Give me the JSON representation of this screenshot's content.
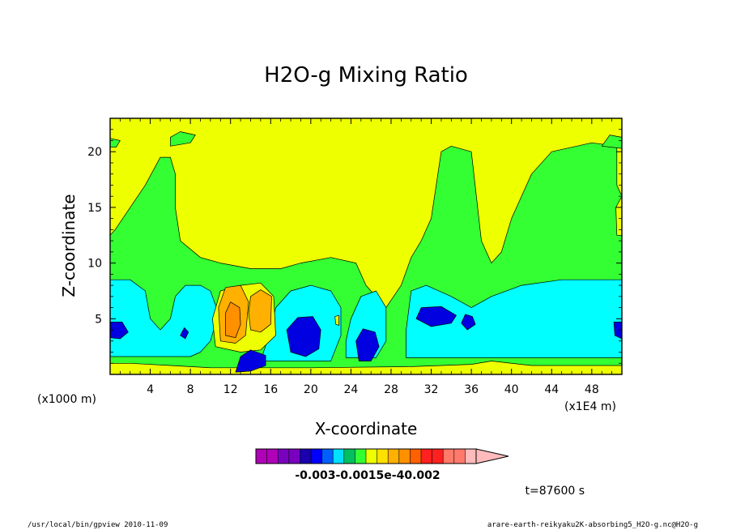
{
  "chart_data": {
    "type": "heatmap",
    "title": "H2O-g Mixing Ratio",
    "xlabel": "X-coordinate",
    "ylabel": "Z-coordinate",
    "x_unit_label": "(x1E4 m)",
    "y_unit_label": "(x1000 m)",
    "xlim": [
      0,
      51
    ],
    "ylim": [
      0,
      23
    ],
    "x_ticks": [
      "4",
      "8",
      "12",
      "16",
      "20",
      "24",
      "28",
      "32",
      "36",
      "40",
      "44",
      "48"
    ],
    "x_tick_values": [
      4,
      8,
      12,
      16,
      20,
      24,
      28,
      32,
      36,
      40,
      44,
      48
    ],
    "y_ticks": [
      "5",
      "10",
      "15",
      "20"
    ],
    "y_tick_values": [
      5,
      10,
      15,
      20
    ],
    "colorbar": {
      "colors": [
        "#b000b8",
        "#b000b8",
        "#7a00c0",
        "#7a00c0",
        "#1a00b0",
        "#0000ff",
        "#0060ff",
        "#00e0ff",
        "#00c060",
        "#33ff33",
        "#eeff00",
        "#ffe000",
        "#ffb000",
        "#ff9000",
        "#ff6000",
        "#ff2020",
        "#ff2020",
        "#ff7a6a",
        "#ff7a6a",
        "#ffbbbb"
      ],
      "label_text": "-0.003-0.0015e-40.002"
    },
    "time_label": "t=87600 s",
    "footer_left": "/usr/local/bin/gpview  2010-11-09",
    "footer_right": "arare-earth-reikyaku2K-absorbing5_H2O-g.nc@H2O-g",
    "regions": [
      {
        "level": "green",
        "color": "#33ff33",
        "points": [
          [
            0,
            0
          ],
          [
            51,
            0
          ],
          [
            51,
            16
          ],
          [
            50.5,
            17
          ],
          [
            50.5,
            20.5
          ],
          [
            48,
            20.8
          ],
          [
            44,
            20
          ],
          [
            42,
            18
          ],
          [
            40,
            14
          ],
          [
            39,
            11
          ],
          [
            38,
            10
          ],
          [
            37,
            12
          ],
          [
            36.5,
            16
          ],
          [
            36,
            20
          ],
          [
            34,
            20.5
          ],
          [
            33,
            20
          ],
          [
            32.5,
            17
          ],
          [
            32,
            14
          ],
          [
            31,
            12
          ],
          [
            30,
            10.5
          ],
          [
            29,
            8
          ],
          [
            27.5,
            6
          ],
          [
            25.5,
            8
          ],
          [
            24.5,
            10
          ],
          [
            22,
            10.5
          ],
          [
            19,
            10
          ],
          [
            17,
            9.5
          ],
          [
            14,
            9.5
          ],
          [
            11,
            10
          ],
          [
            9,
            10.5
          ],
          [
            7,
            12
          ],
          [
            6.5,
            15
          ],
          [
            6.5,
            18
          ],
          [
            6,
            19.5
          ],
          [
            5,
            19.5
          ],
          [
            3.5,
            17
          ],
          [
            2,
            15
          ],
          [
            0.5,
            13
          ],
          [
            0,
            12.5
          ]
        ]
      },
      {
        "level": "cyan",
        "color": "#00ffff",
        "points": [
          [
            0,
            1.6
          ],
          [
            8,
            1.6
          ],
          [
            9,
            2
          ],
          [
            10,
            3
          ],
          [
            10.8,
            5.5
          ],
          [
            10,
            7.5
          ],
          [
            9,
            8
          ],
          [
            7.5,
            8
          ],
          [
            6.5,
            7
          ],
          [
            6,
            5
          ],
          [
            5,
            4
          ],
          [
            4,
            5
          ],
          [
            3.5,
            7.5
          ],
          [
            2,
            8.5
          ],
          [
            0,
            8.5
          ]
        ]
      },
      {
        "level": "cyan",
        "color": "#00ffff",
        "points": [
          [
            15,
            1.2
          ],
          [
            22,
            1.2
          ],
          [
            23,
            3.5
          ],
          [
            23,
            6
          ],
          [
            22,
            7.5
          ],
          [
            20,
            8
          ],
          [
            18,
            7.5
          ],
          [
            16.5,
            6
          ],
          [
            16,
            4
          ]
        ]
      },
      {
        "level": "cyan",
        "color": "#00ffff",
        "points": [
          [
            23.5,
            1.5
          ],
          [
            26.5,
            1.5
          ],
          [
            27.5,
            3
          ],
          [
            27.5,
            6
          ],
          [
            26.5,
            7.5
          ],
          [
            25,
            7
          ],
          [
            24,
            5
          ],
          [
            23.5,
            3
          ]
        ]
      },
      {
        "level": "cyan",
        "color": "#00ffff",
        "points": [
          [
            29.5,
            1.5
          ],
          [
            51,
            1.5
          ],
          [
            51,
            8.5
          ],
          [
            45,
            8.5
          ],
          [
            41,
            8
          ],
          [
            38,
            7
          ],
          [
            36,
            6
          ],
          [
            34,
            7
          ],
          [
            31.5,
            8
          ],
          [
            30,
            7.5
          ],
          [
            29.5,
            4
          ]
        ]
      },
      {
        "level": "yellow-low",
        "color": "#eeff00",
        "points": [
          [
            0,
            0
          ],
          [
            51,
            0
          ],
          [
            51,
            0.8
          ],
          [
            48,
            0.8
          ],
          [
            42,
            0.8
          ],
          [
            38,
            1.2
          ],
          [
            36,
            0.9
          ],
          [
            30,
            0.7
          ],
          [
            20,
            0.6
          ],
          [
            10,
            0.6
          ],
          [
            6,
            0.8
          ],
          [
            2,
            1
          ],
          [
            0,
            1
          ]
        ]
      },
      {
        "level": "yellow",
        "color": "#eeff00",
        "points": [
          [
            10.5,
            2.5
          ],
          [
            13,
            2
          ],
          [
            15,
            2.2
          ],
          [
            16.5,
            3.5
          ],
          [
            16.3,
            7
          ],
          [
            15,
            8.2
          ],
          [
            13,
            8
          ],
          [
            11,
            7.5
          ],
          [
            10.2,
            5
          ]
        ]
      },
      {
        "level": "orange",
        "color": "#ffb000",
        "points": [
          [
            11,
            3
          ],
          [
            12.5,
            2.8
          ],
          [
            13.5,
            3.5
          ],
          [
            13.8,
            6.5
          ],
          [
            13,
            8
          ],
          [
            11.5,
            7.8
          ],
          [
            10.8,
            6
          ]
        ]
      },
      {
        "level": "orange",
        "color": "#ffb000",
        "points": [
          [
            14,
            4
          ],
          [
            15,
            3.8
          ],
          [
            16,
            4.5
          ],
          [
            16.1,
            7
          ],
          [
            15,
            7.6
          ],
          [
            14,
            7
          ],
          [
            13.8,
            5.5
          ]
        ]
      },
      {
        "level": "orange-dark",
        "color": "#ff9000",
        "points": [
          [
            11.5,
            3.5
          ],
          [
            12.5,
            3.3
          ],
          [
            13,
            4.5
          ],
          [
            12.9,
            6
          ],
          [
            12,
            6.5
          ],
          [
            11.5,
            5.5
          ]
        ]
      },
      {
        "level": "blue",
        "color": "#0000e0",
        "points": [
          [
            18,
            2
          ],
          [
            19.5,
            1.6
          ],
          [
            20.8,
            2.3
          ],
          [
            21,
            4
          ],
          [
            20.2,
            5.2
          ],
          [
            18.7,
            5.1
          ],
          [
            17.6,
            4
          ]
        ]
      },
      {
        "level": "blue",
        "color": "#0000e0",
        "points": [
          [
            24.8,
            1.2
          ],
          [
            26,
            1.2
          ],
          [
            26.8,
            2.5
          ],
          [
            26.4,
            3.8
          ],
          [
            25.2,
            4.1
          ],
          [
            24.5,
            3
          ]
        ]
      },
      {
        "level": "blue",
        "color": "#0000e0",
        "points": [
          [
            30.5,
            5
          ],
          [
            32,
            4.3
          ],
          [
            34,
            4.6
          ],
          [
            34.5,
            5.3
          ],
          [
            33,
            6.1
          ],
          [
            31,
            6
          ]
        ]
      },
      {
        "level": "blue",
        "color": "#0000e0",
        "points": [
          [
            35,
            4.6
          ],
          [
            35.6,
            4
          ],
          [
            36.4,
            4.5
          ],
          [
            36.1,
            5.2
          ],
          [
            35.4,
            5.4
          ]
        ]
      },
      {
        "level": "blue",
        "color": "#0000e0",
        "points": [
          [
            0,
            3.3
          ],
          [
            1,
            3.2
          ],
          [
            1.8,
            3.8
          ],
          [
            1.2,
            4.7
          ],
          [
            0,
            4.7
          ]
        ]
      },
      {
        "level": "blue",
        "color": "#0000e0",
        "points": [
          [
            50.2,
            4.7
          ],
          [
            51,
            4.7
          ],
          [
            51,
            3.2
          ],
          [
            50.3,
            3.5
          ]
        ]
      },
      {
        "level": "blue",
        "color": "#0000e0",
        "points": [
          [
            7,
            3.5
          ],
          [
            7.5,
            3.2
          ],
          [
            7.8,
            3.8
          ],
          [
            7.4,
            4.2
          ]
        ]
      },
      {
        "level": "blue",
        "color": "#0000e0",
        "points": [
          [
            12.5,
            0.2
          ],
          [
            14,
            0.3
          ],
          [
            15.5,
            0.8
          ],
          [
            15.5,
            1.7
          ],
          [
            14,
            2.2
          ],
          [
            13,
            1.6
          ]
        ]
      },
      {
        "level": "green-blob",
        "color": "#33ff33",
        "points": [
          [
            6,
            20.5
          ],
          [
            8,
            20.8
          ],
          [
            8.5,
            21.5
          ],
          [
            7,
            21.8
          ],
          [
            6,
            21.3
          ]
        ]
      },
      {
        "level": "green-blob",
        "color": "#33ff33",
        "points": [
          [
            49,
            20.5
          ],
          [
            51,
            20.3
          ],
          [
            51,
            21.3
          ],
          [
            49.8,
            21.5
          ]
        ]
      },
      {
        "level": "green-blob",
        "color": "#33ff33",
        "points": [
          [
            0,
            20.4
          ],
          [
            0.6,
            20.4
          ],
          [
            1,
            21
          ],
          [
            0,
            21.2
          ]
        ]
      },
      {
        "level": "yellow-edge",
        "color": "#eeff00",
        "points": [
          [
            50.5,
            12.5
          ],
          [
            51,
            12.5
          ],
          [
            51,
            16
          ],
          [
            50.4,
            15
          ]
        ]
      },
      {
        "level": "yellow-spot",
        "color": "#eeff00",
        "points": [
          [
            22.5,
            4.5
          ],
          [
            22.8,
            4.4
          ],
          [
            22.8,
            5.3
          ],
          [
            22.4,
            5.2
          ]
        ]
      }
    ]
  }
}
